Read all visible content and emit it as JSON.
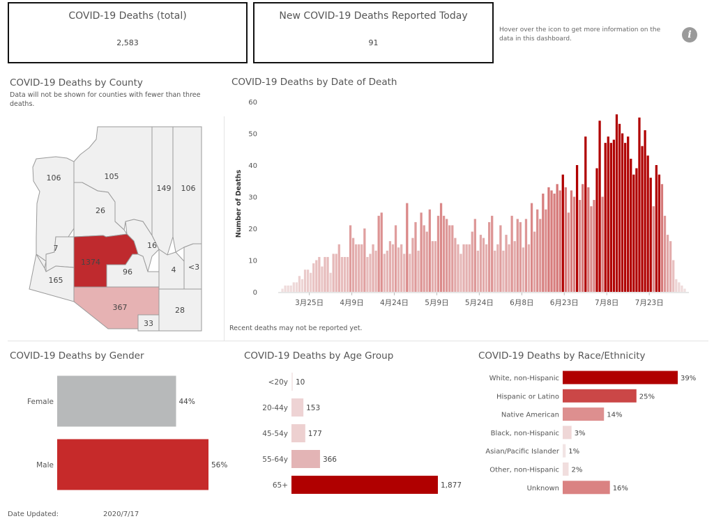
{
  "kpis": {
    "total_title": "COVID-19 Deaths (total)",
    "total_value": "2,583",
    "today_title": "New COVID-19 Deaths Reported Today",
    "today_value": "91"
  },
  "hover_note": "Hover over the icon to get more information on the data in this dashboard.",
  "info_icon": {
    "glyph": "i",
    "icon": "info-icon"
  },
  "county_map": {
    "title": "COVID-19 Deaths by County",
    "subtitle": "Data will not be shown for counties with fewer than three deaths.",
    "counties": [
      {
        "value": "106",
        "color": "#f0f0f0"
      },
      {
        "value": "105",
        "color": "#f0f0f0"
      },
      {
        "value": "149",
        "color": "#f0f0f0"
      },
      {
        "value": "106",
        "color": "#f0f0f0"
      },
      {
        "value": "26",
        "color": "#f0f0f0"
      },
      {
        "value": "16",
        "color": "#f0f0f0"
      },
      {
        "value": "7",
        "color": "#f0f0f0"
      },
      {
        "value": "1374",
        "color": "#bf2a2e"
      },
      {
        "value": "96",
        "color": "#f0f0f0"
      },
      {
        "value": "4",
        "color": "#f0f0f0"
      },
      {
        "value": "<3",
        "color": "#f0f0f0"
      },
      {
        "value": "165",
        "color": "#f0f0f0"
      },
      {
        "value": "367",
        "color": "#e6b2b3"
      },
      {
        "value": "28",
        "color": "#f0f0f0"
      },
      {
        "value": "33",
        "color": "#f0f0f0"
      }
    ]
  },
  "date_chart": {
    "title": "COVID-19 Deaths by Date of Death",
    "note": "Recent deaths may not be reported yet."
  },
  "gender_chart": {
    "title": "COVID-19 Deaths by Gender"
  },
  "age_chart": {
    "title": "COVID-19 Deaths by Age Group"
  },
  "race_chart": {
    "title": "COVID-19 Deaths by Race/Ethnicity"
  },
  "footer": {
    "label": "Date Updated:",
    "value": "2020/7/17"
  },
  "colors": {
    "dark_red": "#b00000",
    "red": "#c62a2a",
    "mid_red": "#d98585",
    "pale": "#ecd3d4",
    "gray": "#b7b9ba"
  },
  "chart_data": [
    {
      "type": "bar",
      "title": "COVID-19 Deaths by Date of Death",
      "ylabel": "Number of Deaths",
      "ylim": [
        0,
        60
      ],
      "yticks": [
        "0",
        "10",
        "20",
        "30",
        "40",
        "50",
        "60"
      ],
      "xtick_labels": [
        "3月25日",
        "4月9日",
        "4月24日",
        "5月9日",
        "5月24日",
        "6月8日",
        "6月23日",
        "7月8日",
        "7月23日"
      ],
      "start_date": "2020-03-15",
      "values": [
        1,
        2,
        2,
        2,
        3,
        3,
        5,
        4,
        7,
        7,
        6,
        9,
        10,
        11,
        8,
        11,
        11,
        6,
        12,
        12,
        15,
        11,
        11,
        11,
        21,
        17,
        15,
        15,
        15,
        20,
        11,
        12,
        15,
        13,
        24,
        25,
        12,
        13,
        16,
        15,
        21,
        14,
        15,
        12,
        28,
        12,
        17,
        22,
        13,
        25,
        21,
        19,
        26,
        16,
        16,
        24,
        28,
        24,
        23,
        21,
        21,
        17,
        15,
        12,
        15,
        15,
        15,
        19,
        23,
        13,
        18,
        17,
        15,
        22,
        24,
        13,
        15,
        21,
        13,
        18,
        15,
        24,
        16,
        23,
        22,
        14,
        23,
        15,
        28,
        19,
        26,
        23,
        31,
        26,
        33,
        32,
        31,
        34,
        32,
        37,
        33,
        25,
        32,
        30,
        40,
        29,
        34,
        49,
        33,
        27,
        29,
        39,
        54,
        30,
        47,
        49,
        47,
        48,
        56,
        53,
        50,
        47,
        49,
        42,
        37,
        39,
        55,
        46,
        51,
        43,
        36,
        27,
        40,
        37,
        34,
        24,
        18,
        16,
        10,
        4,
        3,
        2,
        1
      ],
      "x_range_labels": [
        "3月25日",
        "7月23日"
      ]
    },
    {
      "type": "bar",
      "title": "COVID-19 Deaths by Gender",
      "categories": [
        "Female",
        "Male"
      ],
      "values": [
        44,
        56
      ],
      "labels": [
        "44%",
        "56%"
      ]
    },
    {
      "type": "bar",
      "title": "COVID-19 Deaths by Age Group",
      "categories": [
        "<20y",
        "20-44y",
        "45-54y",
        "55-64y",
        "65+"
      ],
      "values": [
        10,
        153,
        177,
        366,
        1877
      ],
      "labels": [
        "10",
        "153",
        "177",
        "366",
        "1,877"
      ]
    },
    {
      "type": "bar",
      "title": "COVID-19 Deaths by Race/Ethnicity",
      "categories": [
        "White, non-Hispanic",
        "Hispanic or Latino",
        "Native American",
        "Black, non-Hispanic",
        "Asian/Pacific Islander",
        "Other, non-Hispanic",
        "Unknown"
      ],
      "values": [
        39,
        25,
        14,
        3,
        1,
        2,
        16
      ],
      "labels": [
        "39%",
        "25%",
        "14%",
        "3%",
        "1%",
        "2%",
        "16%"
      ]
    }
  ]
}
